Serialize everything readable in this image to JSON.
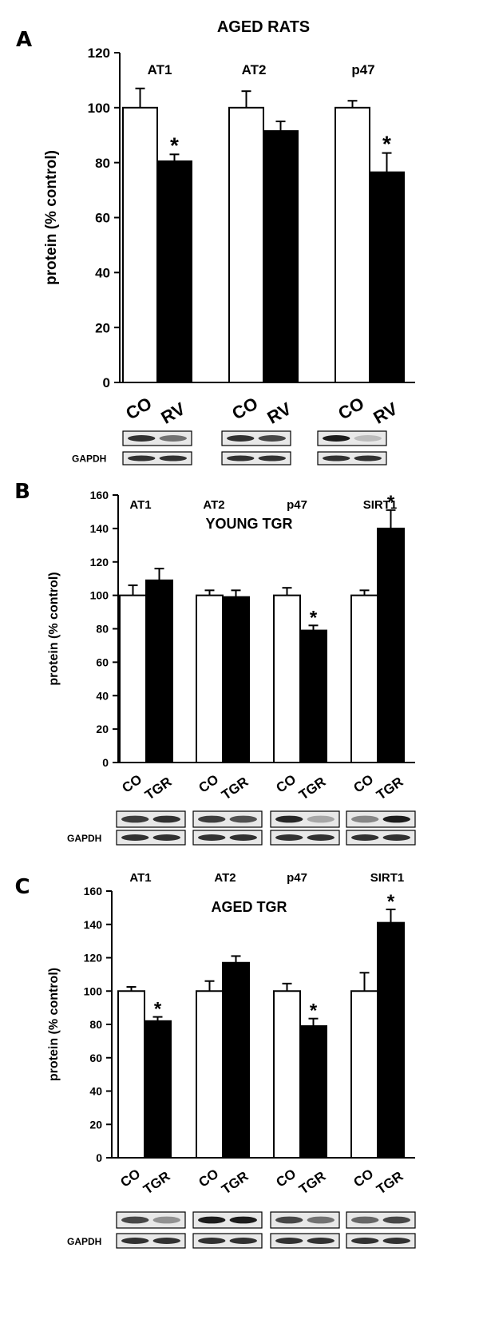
{
  "chart_data": [
    {
      "panel_label": "A",
      "type": "bar",
      "title": "AGED RATS",
      "ylabel": "protein (% control)",
      "ylim": [
        0,
        120
      ],
      "yticks": [
        0,
        20,
        40,
        60,
        80,
        100,
        120
      ],
      "series_names": [
        "CO",
        "RV"
      ],
      "groups": [
        {
          "label": "AT1",
          "values": [
            100,
            80.5
          ],
          "errors": [
            7,
            2.5
          ],
          "significant": [
            false,
            true
          ]
        },
        {
          "label": "AT2",
          "values": [
            100,
            91.5
          ],
          "errors": [
            6,
            3.5
          ],
          "significant": [
            false,
            false
          ]
        },
        {
          "label": "p47",
          "values": [
            100,
            76.5
          ],
          "errors": [
            2.5,
            7
          ],
          "significant": [
            false,
            true
          ]
        }
      ],
      "xtick_labels": [
        "CO",
        "RV"
      ],
      "blot_label": "GAPDH",
      "significance_marker": "*",
      "series_colors": [
        "#ffffff",
        "#000000"
      ]
    },
    {
      "panel_label": "B",
      "type": "bar",
      "title": "YOUNG TGR",
      "ylabel": "protein (% control)",
      "ylim": [
        0,
        160
      ],
      "yticks": [
        0,
        20,
        40,
        60,
        80,
        100,
        120,
        140,
        160
      ],
      "series_names": [
        "CO",
        "TGR"
      ],
      "groups": [
        {
          "label": "AT1",
          "values": [
            100,
            109
          ],
          "errors": [
            6,
            7
          ],
          "significant": [
            false,
            false
          ]
        },
        {
          "label": "AT2",
          "values": [
            100,
            99
          ],
          "errors": [
            3,
            4
          ],
          "significant": [
            false,
            false
          ]
        },
        {
          "label": "p47",
          "values": [
            100,
            79
          ],
          "errors": [
            4.5,
            3
          ],
          "significant": [
            false,
            true
          ]
        },
        {
          "label": "SIRT1",
          "values": [
            100,
            140
          ],
          "errors": [
            3,
            11
          ],
          "significant": [
            false,
            true
          ]
        }
      ],
      "xtick_labels": [
        "CO",
        "TGR"
      ],
      "blot_label": "GAPDH",
      "significance_marker": "*",
      "series_colors": [
        "#ffffff",
        "#000000"
      ]
    },
    {
      "panel_label": "C",
      "type": "bar",
      "title": "AGED TGR",
      "ylabel": "protein (% control)",
      "ylim": [
        0,
        160
      ],
      "yticks": [
        0,
        20,
        40,
        60,
        80,
        100,
        120,
        140,
        160
      ],
      "series_names": [
        "CO",
        "TGR"
      ],
      "groups": [
        {
          "label": "AT1",
          "values": [
            100,
            82
          ],
          "errors": [
            2.5,
            2.5
          ],
          "significant": [
            false,
            true
          ]
        },
        {
          "label": "AT2",
          "values": [
            100,
            117
          ],
          "errors": [
            6,
            4
          ],
          "significant": [
            false,
            false
          ]
        },
        {
          "label": "p47",
          "values": [
            100,
            79
          ],
          "errors": [
            4.5,
            4.5
          ],
          "significant": [
            false,
            true
          ]
        },
        {
          "label": "SIRT1",
          "values": [
            100,
            141
          ],
          "errors": [
            11,
            8
          ],
          "significant": [
            false,
            true
          ]
        }
      ],
      "xtick_labels": [
        "CO",
        "TGR"
      ],
      "blot_label": "GAPDH",
      "significance_marker": "*",
      "series_colors": [
        "#ffffff",
        "#000000"
      ]
    }
  ]
}
